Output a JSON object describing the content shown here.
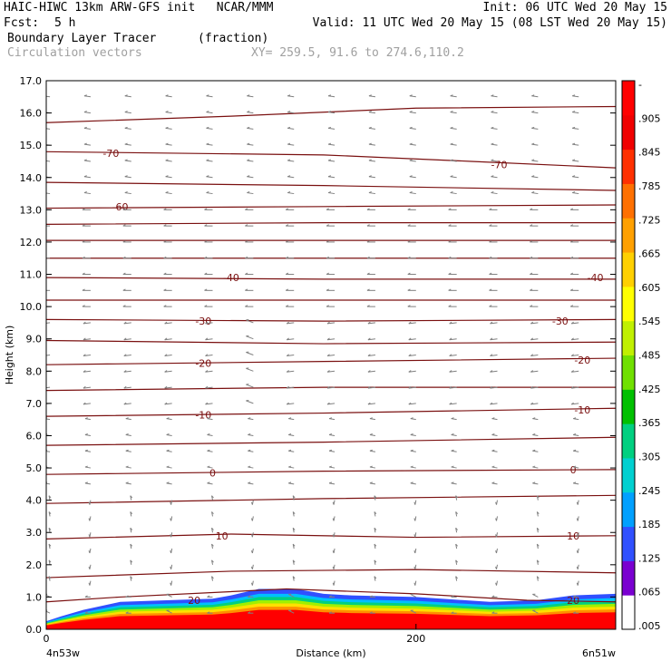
{
  "header": {
    "line1_left": "HAIC-HIWC 13km ARW-GFS init   NCAR/MMM",
    "line1_right": "Init: 06 UTC Wed 20 May 15",
    "fcst_label": "Fcst:",
    "fcst_value": "5 h",
    "valid": "Valid: 11 UTC Wed 20 May 15 (08 LST Wed 20 May 15)",
    "field_name": "Boundary Layer Tracer",
    "field_units": "(fraction)",
    "vector_name": "Circulation vectors",
    "xy_range": "XY= 259.5, 91.6 to 274.6,110.2"
  },
  "colors": {
    "contour": "#7a1010",
    "vector": "#808080",
    "colorbar": [
      "#ffffff",
      "#7a00d0",
      "#3050ff",
      "#00a0ff",
      "#00d0d0",
      "#00d080",
      "#00c000",
      "#70e000",
      "#c0f000",
      "#ffff00",
      "#ffd000",
      "#ffa000",
      "#ff7000",
      "#ff3000",
      "#f00000",
      "#ff0000"
    ]
  },
  "chart_data": {
    "type": "contour",
    "xlabel": "Distance (km)",
    "ylabel": "Height (km)",
    "xlim": [
      0,
      308
    ],
    "ylim": [
      0,
      17
    ],
    "x_ticks": [
      {
        "value": 0,
        "label": "0"
      },
      {
        "value": 200,
        "label": "200"
      }
    ],
    "x_end_labels": {
      "left": "4n53w",
      "right": "6n51w"
    },
    "y_ticks": [
      "0.0",
      "1.0",
      "2.0",
      "3.0",
      "4.0",
      "5.0",
      "6.0",
      "7.0",
      "8.0",
      "9.0",
      "10.0",
      "11.0",
      "12.0",
      "13.0",
      "14.0",
      "15.0",
      "16.0",
      "17.0"
    ],
    "colorbar": {
      "labels": [
        "-",
        ".905",
        ".845",
        ".785",
        ".725",
        ".665",
        ".605",
        ".545",
        ".485",
        ".425",
        ".365",
        ".305",
        ".245",
        ".185",
        ".125",
        ".065",
        ".005"
      ]
    },
    "contour_lines": [
      {
        "label": "20",
        "points": [
          [
            0,
            0.85
          ],
          [
            40,
            1.0
          ],
          [
            130,
            1.25
          ],
          [
            200,
            1.1
          ],
          [
            260,
            0.9
          ],
          [
            308,
            0.85
          ]
        ],
        "label_positions": [
          [
            80,
            0.9
          ],
          [
            285,
            0.9
          ]
        ]
      },
      {
        "label": "",
        "points": [
          [
            0,
            1.6
          ],
          [
            100,
            1.8
          ],
          [
            200,
            1.85
          ],
          [
            308,
            1.75
          ]
        ],
        "label_positions": []
      },
      {
        "label": "10",
        "points": [
          [
            0,
            2.8
          ],
          [
            100,
            2.95
          ],
          [
            200,
            2.85
          ],
          [
            308,
            2.9
          ]
        ],
        "label_positions": [
          [
            95,
            2.9
          ],
          [
            285,
            2.9
          ]
        ]
      },
      {
        "label": "",
        "points": [
          [
            0,
            3.9
          ],
          [
            150,
            4.05
          ],
          [
            308,
            4.15
          ]
        ],
        "label_positions": []
      },
      {
        "label": "0",
        "points": [
          [
            0,
            4.8
          ],
          [
            150,
            4.9
          ],
          [
            308,
            4.95
          ]
        ],
        "label_positions": [
          [
            90,
            4.85
          ],
          [
            285,
            4.95
          ]
        ]
      },
      {
        "label": "",
        "points": [
          [
            0,
            5.7
          ],
          [
            150,
            5.8
          ],
          [
            308,
            5.95
          ]
        ],
        "label_positions": []
      },
      {
        "label": "-10",
        "points": [
          [
            0,
            6.6
          ],
          [
            150,
            6.7
          ],
          [
            308,
            6.85
          ]
        ],
        "label_positions": [
          [
            85,
            6.65
          ],
          [
            290,
            6.8
          ]
        ]
      },
      {
        "label": "",
        "points": [
          [
            0,
            7.4
          ],
          [
            150,
            7.5
          ],
          [
            308,
            7.5
          ]
        ],
        "label_positions": []
      },
      {
        "label": "-20",
        "points": [
          [
            0,
            8.2
          ],
          [
            150,
            8.3
          ],
          [
            308,
            8.4
          ]
        ],
        "label_positions": [
          [
            85,
            8.25
          ],
          [
            290,
            8.35
          ]
        ]
      },
      {
        "label": "",
        "points": [
          [
            0,
            8.95
          ],
          [
            150,
            8.85
          ],
          [
            308,
            8.9
          ]
        ],
        "label_positions": []
      },
      {
        "label": "-30",
        "points": [
          [
            0,
            9.6
          ],
          [
            150,
            9.55
          ],
          [
            308,
            9.6
          ]
        ],
        "label_positions": [
          [
            85,
            9.55
          ],
          [
            278,
            9.55
          ]
        ]
      },
      {
        "label": "",
        "points": [
          [
            0,
            10.2
          ],
          [
            150,
            10.2
          ],
          [
            308,
            10.2
          ]
        ],
        "label_positions": []
      },
      {
        "label": "-40",
        "points": [
          [
            0,
            10.9
          ],
          [
            150,
            10.85
          ],
          [
            308,
            10.85
          ]
        ],
        "label_positions": [
          [
            100,
            10.9
          ],
          [
            297,
            10.9
          ]
        ]
      },
      {
        "label": "",
        "points": [
          [
            0,
            11.5
          ],
          [
            150,
            11.5
          ],
          [
            308,
            11.5
          ]
        ],
        "label_positions": []
      },
      {
        "label": "",
        "points": [
          [
            0,
            12.05
          ],
          [
            150,
            12.05
          ],
          [
            308,
            12.05
          ]
        ],
        "label_positions": []
      },
      {
        "label": "",
        "points": [
          [
            0,
            12.55
          ],
          [
            150,
            12.6
          ],
          [
            308,
            12.6
          ]
        ],
        "label_positions": []
      },
      {
        "label": "-60",
        "points": [
          [
            0,
            13.05
          ],
          [
            150,
            13.1
          ],
          [
            308,
            13.15
          ]
        ],
        "label_positions": [
          [
            40,
            13.1
          ]
        ]
      },
      {
        "label": "",
        "points": [
          [
            0,
            13.85
          ],
          [
            150,
            13.75
          ],
          [
            308,
            13.6
          ]
        ],
        "label_positions": []
      },
      {
        "label": "-70",
        "points": [
          [
            0,
            14.8
          ],
          [
            150,
            14.7
          ],
          [
            230,
            14.5
          ],
          [
            308,
            14.3
          ]
        ],
        "label_positions": [
          [
            35,
            14.75
          ],
          [
            245,
            14.4
          ]
        ]
      },
      {
        "label": "",
        "points": [
          [
            0,
            15.7
          ],
          [
            100,
            15.9
          ],
          [
            200,
            16.15
          ],
          [
            308,
            16.2
          ]
        ],
        "label_positions": []
      }
    ],
    "tracer_shading": {
      "description": "boundary layer tracer fraction, high near surface",
      "top_km": [
        [
          0,
          0.25
        ],
        [
          8,
          0.4
        ],
        [
          20,
          0.6
        ],
        [
          40,
          0.85
        ],
        [
          90,
          0.95
        ],
        [
          100,
          1.05
        ],
        [
          115,
          1.25
        ],
        [
          135,
          1.25
        ],
        [
          150,
          1.1
        ],
        [
          165,
          1.05
        ],
        [
          200,
          1.0
        ],
        [
          240,
          0.85
        ],
        [
          265,
          0.9
        ],
        [
          285,
          1.05
        ],
        [
          308,
          1.1
        ]
      ]
    },
    "vector_field": {
      "rows_km": [
        0.5,
        1.0,
        1.5,
        2.0,
        2.5,
        3.0,
        3.5,
        4.0,
        4.5,
        5.0,
        5.5,
        6.0,
        6.5,
        7.0,
        7.5,
        8.0,
        8.5,
        9.0,
        9.5,
        10.0,
        10.5,
        11.0,
        11.5,
        12.0,
        12.5,
        13.0,
        13.5,
        14.0,
        14.5,
        15.0,
        15.5,
        16.0,
        16.5
      ],
      "columns_km": [
        2,
        24,
        46,
        68,
        90,
        112,
        134,
        156,
        178,
        200,
        222,
        244,
        266,
        288
      ]
    }
  }
}
